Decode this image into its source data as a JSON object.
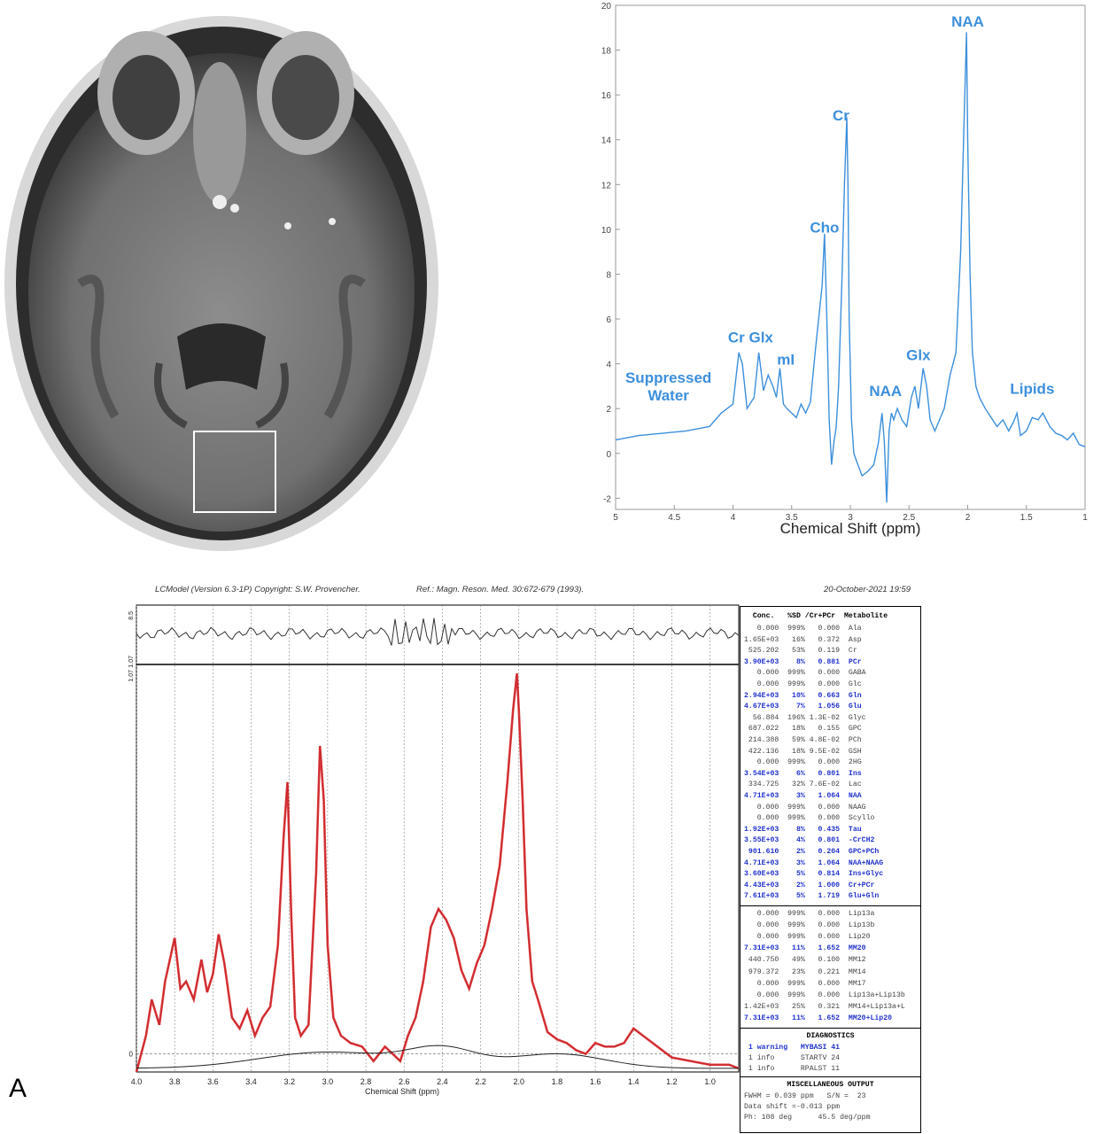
{
  "panel_label": "A",
  "mri": {
    "description_label": ""
  },
  "colors": {
    "spectrum_blue": "#3d8fdc",
    "fit_red": "#d9272b",
    "data_black": "#222222",
    "table_highlight": "#2233cc"
  },
  "chart_data": [
    {
      "type": "line",
      "title": "",
      "xlabel": "Chemical Shift (ppm)",
      "ylabel": "",
      "xlim": [
        5,
        1
      ],
      "ylim": [
        -2.5,
        20
      ],
      "x_ticks": [
        "5",
        "4.5",
        "4",
        "3.5",
        "3",
        "2.5",
        "2",
        "1.5",
        "1"
      ],
      "y_ticks": [
        "-2",
        "0",
        "2",
        "4",
        "6",
        "8",
        "10",
        "12",
        "14",
        "16",
        "18",
        "20"
      ],
      "grid": false,
      "series": [
        {
          "x": [
            5.0,
            4.8,
            4.6,
            4.4,
            4.2,
            4.1,
            4.05,
            4.0,
            3.95,
            3.92,
            3.88,
            3.82,
            3.78,
            3.74,
            3.7,
            3.66,
            3.63,
            3.6,
            3.57,
            3.54,
            3.5,
            3.46,
            3.42,
            3.38,
            3.34,
            3.3,
            3.27,
            3.24,
            3.22,
            3.2,
            3.18,
            3.16,
            3.14,
            3.12,
            3.1,
            3.07,
            3.05,
            3.03,
            3.02,
            3.01,
            2.99,
            2.97,
            2.95,
            2.9,
            2.85,
            2.8,
            2.76,
            2.73,
            2.71,
            2.69,
            2.67,
            2.65,
            2.63,
            2.6,
            2.56,
            2.52,
            2.48,
            2.45,
            2.42,
            2.38,
            2.35,
            2.32,
            2.28,
            2.24,
            2.2,
            2.15,
            2.1,
            2.06,
            2.03,
            2.01,
            2.0,
            1.98,
            1.96,
            1.93,
            1.9,
            1.85,
            1.8,
            1.75,
            1.7,
            1.65,
            1.61,
            1.58,
            1.55,
            1.5,
            1.45,
            1.4,
            1.36,
            1.3,
            1.25,
            1.2,
            1.15,
            1.1,
            1.05,
            1.0
          ],
          "y": [
            0.6,
            0.8,
            0.9,
            1.0,
            1.2,
            1.8,
            2.0,
            2.2,
            4.5,
            4.0,
            2.0,
            2.5,
            4.5,
            2.8,
            3.5,
            3.0,
            2.5,
            3.8,
            2.2,
            2.0,
            1.8,
            1.6,
            2.2,
            1.8,
            2.3,
            4.5,
            6.0,
            7.5,
            9.8,
            6.0,
            1.5,
            -0.5,
            0.5,
            1.2,
            3.0,
            8.0,
            12.0,
            15.0,
            12.0,
            6.0,
            1.5,
            0.0,
            -0.3,
            -1.0,
            -0.8,
            -0.5,
            0.5,
            1.8,
            0.5,
            -2.2,
            1.0,
            1.8,
            1.5,
            2.0,
            1.5,
            1.2,
            2.5,
            3.0,
            2.0,
            3.8,
            3.0,
            1.5,
            1.0,
            1.5,
            2.0,
            3.5,
            4.5,
            9.0,
            15.0,
            18.8,
            14.0,
            8.0,
            4.5,
            3.0,
            2.5,
            2.0,
            1.6,
            1.2,
            1.5,
            1.0,
            1.4,
            1.8,
            0.8,
            1.0,
            1.6,
            1.5,
            1.8,
            1.2,
            0.9,
            0.8,
            0.6,
            0.9,
            0.4,
            0.3
          ]
        }
      ],
      "annotations": [
        {
          "text": "Suppressed\nWater",
          "x": 4.55,
          "y": 2.2
        },
        {
          "text": "Cr Glx",
          "x": 3.85,
          "y": 4.8
        },
        {
          "text": "mI",
          "x": 3.55,
          "y": 3.8
        },
        {
          "text": "Cho",
          "x": 3.22,
          "y": 9.7
        },
        {
          "text": "Cr",
          "x": 3.08,
          "y": 14.7
        },
        {
          "text": "NAA",
          "x": 2.7,
          "y": 2.4
        },
        {
          "text": "Glx",
          "x": 2.42,
          "y": 4.0
        },
        {
          "text": "NAA",
          "x": 2.0,
          "y": 18.9
        },
        {
          "text": "Lipids",
          "x": 1.45,
          "y": 2.5
        }
      ]
    },
    {
      "type": "line",
      "title": "",
      "xlabel": "Chemical Shift (ppm)",
      "ylabel": "",
      "xlim": [
        4.0,
        0.85
      ],
      "ylim": [
        -0.05,
        1.07
      ],
      "x_ticks": [
        "4.0",
        "3.8",
        "3.6",
        "3.4",
        "3.2",
        "3.0",
        "2.8",
        "2.6",
        "2.4",
        "2.2",
        "2.0",
        "1.8",
        "1.6",
        "1.4",
        "1.2",
        "1.0"
      ],
      "y_tick_main": [
        "0",
        "1.07"
      ],
      "residual_ticks": [
        "8.5",
        "1.07"
      ],
      "grid": true,
      "series": [
        {
          "name": "",
          "x": [
            4.0,
            3.95,
            3.92,
            3.88,
            3.85,
            3.8,
            3.77,
            3.74,
            3.7,
            3.66,
            3.63,
            3.6,
            3.57,
            3.54,
            3.5,
            3.46,
            3.42,
            3.38,
            3.34,
            3.3,
            3.26,
            3.23,
            3.21,
            3.19,
            3.17,
            3.14,
            3.1,
            3.06,
            3.04,
            3.02,
            3.0,
            2.97,
            2.93,
            2.88,
            2.82,
            2.76,
            2.7,
            2.66,
            2.62,
            2.58,
            2.54,
            2.5,
            2.46,
            2.42,
            2.38,
            2.34,
            2.3,
            2.26,
            2.22,
            2.18,
            2.14,
            2.1,
            2.06,
            2.03,
            2.01,
            2.0,
            1.98,
            1.96,
            1.93,
            1.9,
            1.85,
            1.8,
            1.75,
            1.7,
            1.65,
            1.6,
            1.55,
            1.5,
            1.45,
            1.4,
            1.35,
            1.3,
            1.2,
            1.1,
            1.0,
            0.9,
            0.85
          ],
          "y": [
            -0.05,
            0.05,
            0.15,
            0.08,
            0.2,
            0.32,
            0.18,
            0.2,
            0.15,
            0.26,
            0.17,
            0.22,
            0.33,
            0.25,
            0.1,
            0.07,
            0.12,
            0.05,
            0.1,
            0.13,
            0.3,
            0.6,
            0.75,
            0.38,
            0.1,
            0.05,
            0.08,
            0.5,
            0.85,
            0.7,
            0.3,
            0.1,
            0.05,
            0.03,
            0.02,
            -0.02,
            0.02,
            0.0,
            -0.02,
            0.05,
            0.1,
            0.2,
            0.35,
            0.4,
            0.37,
            0.32,
            0.23,
            0.18,
            0.25,
            0.3,
            0.4,
            0.52,
            0.75,
            0.95,
            1.05,
            0.95,
            0.7,
            0.4,
            0.2,
            0.15,
            0.06,
            0.04,
            0.03,
            0.01,
            0.0,
            0.03,
            0.02,
            0.02,
            0.03,
            0.07,
            0.05,
            0.03,
            -0.01,
            -0.02,
            -0.03,
            -0.03,
            -0.04
          ]
        }
      ]
    }
  ],
  "lcmodel": {
    "header_left": "LCModel (Version 6.3-1P) Copyright: S.W. Provencher.",
    "header_mid": "Ref.: Magn. Reson. Med. 30:672-679 (1993).",
    "header_right": "20-October-2021  19:59",
    "table_header": "  Conc.   %SD /Cr+PCr  Metabolite",
    "rows": [
      {
        "text": "   0.000  999%   0.000  Ala",
        "hl": false
      },
      {
        "text": "1.65E+03   16%   0.372  Asp",
        "hl": false
      },
      {
        "text": " 525.202   53%   0.119  Cr",
        "hl": false
      },
      {
        "text": "3.90E+03    8%   0.881  PCr",
        "hl": true
      },
      {
        "text": "   0.000  999%   0.000  GABA",
        "hl": false
      },
      {
        "text": "   0.000  999%   0.000  Glc",
        "hl": false
      },
      {
        "text": "2.94E+03   10%   0.663  Gln",
        "hl": true
      },
      {
        "text": "4.67E+03    7%   1.056  Glu",
        "hl": true
      },
      {
        "text": "  56.884  196% 1.3E-02  Glyc",
        "hl": false
      },
      {
        "text": " 687.022   18%   0.155  GPC",
        "hl": false
      },
      {
        "text": " 214.388   59% 4.8E-02  PCh",
        "hl": false
      },
      {
        "text": " 422.136   18% 9.5E-02  GSH",
        "hl": false
      },
      {
        "text": "   0.000  999%   0.000  2HG",
        "hl": false
      },
      {
        "text": "3.54E+03    6%   0.801  Ins",
        "hl": true
      },
      {
        "text": " 334.725   32% 7.6E-02  Lac",
        "hl": false
      },
      {
        "text": "4.71E+03    3%   1.064  NAA",
        "hl": true
      },
      {
        "text": "   0.000  999%   0.000  NAAG",
        "hl": false
      },
      {
        "text": "   0.000  999%   0.000  Scyllo",
        "hl": false
      },
      {
        "text": "1.92E+03    8%   0.435  Tau",
        "hl": true
      },
      {
        "text": "3.55E+03    4%   0.801  -CrCH2",
        "hl": true
      },
      {
        "text": " 901.610    2%   0.204  GPC+PCh",
        "hl": true
      },
      {
        "text": "4.71E+03    3%   1.064  NAA+NAAG",
        "hl": true
      },
      {
        "text": "3.60E+03    5%   0.814  Ins+Glyc",
        "hl": true
      },
      {
        "text": "4.43E+03    2%   1.000  Cr+PCr",
        "hl": true
      },
      {
        "text": "7.61E+03    5%   1.719  Glu+Gln",
        "hl": true
      }
    ],
    "rows2": [
      {
        "text": "   0.000  999%   0.000  Lip13a",
        "hl": false
      },
      {
        "text": "   0.000  999%   0.000  Lip13b",
        "hl": false
      },
      {
        "text": "   0.000  999%   0.000  Lip20",
        "hl": false
      },
      {
        "text": "7.31E+03   11%   1.652  MM20",
        "hl": true
      },
      {
        "text": " 440.750   49%   0.100  MM12",
        "hl": false
      },
      {
        "text": " 979.372   23%   0.221  MM14",
        "hl": false
      },
      {
        "text": "   0.000  999%   0.000  MM17",
        "hl": false
      },
      {
        "text": "   0.000  999%   0.000  Lip13a+Lip13b",
        "hl": false
      },
      {
        "text": "1.42E+03   25%   0.321  MM14+Lip13a+L",
        "hl": false
      },
      {
        "text": "7.31E+03   11%   1.652  MM20+Lip20",
        "hl": true
      }
    ],
    "diag_title": "DIAGNOSTICS",
    "diag_rows": [
      {
        "text": " 1 warning   MYBASI 41",
        "hl": true
      },
      {
        "text": " 1 info      STARTV 24",
        "hl": false
      },
      {
        "text": " 1 info      RPALST 11",
        "hl": false
      }
    ],
    "misc_title": "MISCELLANEOUS OUTPUT",
    "misc_rows": [
      "FWHM = 0.039 ppm   S/N =  23",
      "Data shift =-0.013 ppm",
      "Ph: 108 deg      45.5 deg/ppm"
    ]
  }
}
